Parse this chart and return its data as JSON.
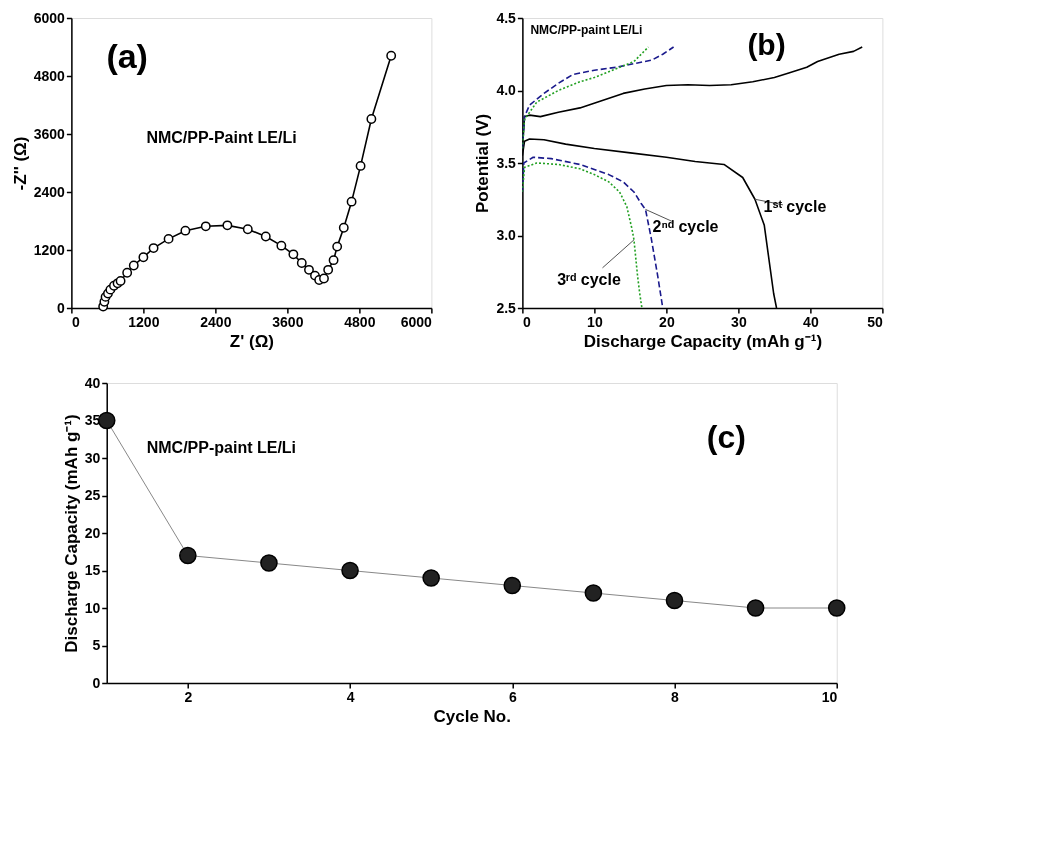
{
  "chart_data": [
    {
      "type": "line",
      "xlabel": "Z' (Ω)",
      "ylabel": "-Z'' (Ω)",
      "annotations": [
        "(a)",
        "NMC/PP-Paint LE/Li"
      ],
      "marker": "circle",
      "grid": false,
      "xlim": [
        0,
        6000
      ],
      "ylim": [
        0,
        6000
      ],
      "xticks": [
        0,
        1200,
        2400,
        3600,
        4800,
        6000
      ],
      "yticks": [
        0,
        1200,
        2400,
        3600,
        4800,
        6000
      ],
      "series": [
        {
          "color": "#000000",
          "line_style": "solid",
          "x": [
            530,
            550,
            570,
            610,
            650,
            710,
            770,
            820,
            930,
            1040,
            1200,
            1370,
            1620,
            1900,
            2240,
            2600,
            2940,
            3240,
            3500,
            3700,
            3840,
            3960,
            4060,
            4130,
            4210,
            4280,
            4370,
            4430,
            4540,
            4670,
            4820,
            5000,
            5330
          ],
          "values": [
            30,
            130,
            230,
            300,
            380,
            460,
            510,
            560,
            730,
            880,
            1050,
            1240,
            1430,
            1600,
            1690,
            1710,
            1630,
            1480,
            1290,
            1110,
            930,
            790,
            670,
            580,
            610,
            790,
            990,
            1270,
            1660,
            2200,
            2940,
            3910,
            5220
          ]
        }
      ]
    },
    {
      "type": "line",
      "xlabel": "Discharge Capacity (mAh g⁻¹)",
      "ylabel": "Potential (V)",
      "grid": false,
      "annotations": [
        "NMC/PP-paint LE/Li",
        "(b)",
        {
          "text": "1ˢᵗ cycle",
          "x": 32.3,
          "y": 3.25
        },
        {
          "text": "2ⁿᵈ cycle",
          "x": 17.1,
          "y": 3.18
        },
        {
          "text": "3ʳᵈ cycle",
          "x": 15.5,
          "y": 2.97
        }
      ],
      "xlim": [
        0,
        50
      ],
      "ylim": [
        2.5,
        4.5
      ],
      "xticks": [
        0,
        10,
        20,
        30,
        40,
        50
      ],
      "yticks": [
        2.5,
        {
          "value": 3,
          "label": "3.0"
        },
        3.5,
        {
          "value": 4,
          "label": "4.0"
        },
        4.5
      ],
      "series": [
        {
          "color": "#000000",
          "line_style": "solid",
          "x": [
            0,
            0.3,
            1,
            2.5,
            5,
            8,
            11,
            14,
            17,
            20,
            23,
            26,
            29,
            32,
            35,
            37,
            39.5,
            41,
            44,
            46,
            47.2
          ],
          "values": [
            3.6,
            3.82,
            3.83,
            3.82,
            3.85,
            3.88,
            3.93,
            3.98,
            4.01,
            4.035,
            4.04,
            4.035,
            4.04,
            4.06,
            4.09,
            4.12,
            4.16,
            4.2,
            4.25,
            4.27,
            4.3
          ]
        },
        {
          "color": "#000000",
          "line_style": "solid",
          "x": [
            0,
            0.3,
            1,
            3,
            6,
            10,
            15,
            20,
            24,
            28,
            30.6,
            32.3,
            33.6,
            34.4,
            34.9,
            35.3
          ],
          "values": [
            3.55,
            3.65,
            3.665,
            3.66,
            3.63,
            3.6,
            3.57,
            3.54,
            3.51,
            3.49,
            3.4,
            3.25,
            3.07,
            2.78,
            2.6,
            2.5
          ]
        },
        {
          "color": "#1a1a8c",
          "line_style": "dashed",
          "x": [
            0,
            0.3,
            1,
            3,
            5,
            7,
            10,
            13,
            16,
            18,
            19.5,
            21
          ],
          "values": [
            3.6,
            3.82,
            3.9,
            3.98,
            4.05,
            4.11,
            4.14,
            4.16,
            4.19,
            4.21,
            4.25,
            4.3
          ]
        },
        {
          "color": "#1a1a8c",
          "line_style": "dashed",
          "x": [
            0,
            0.2,
            1.5,
            4,
            8,
            12,
            14,
            15.5,
            16.5,
            17.1,
            17.9,
            18.8,
            19.5
          ],
          "values": [
            3.3,
            3.5,
            3.54,
            3.53,
            3.49,
            3.42,
            3.37,
            3.3,
            3.22,
            3.18,
            2.98,
            2.72,
            2.5
          ]
        },
        {
          "color": "#22a022",
          "line_style": "dotted",
          "x": [
            0,
            0.3,
            2,
            5,
            8,
            10,
            12,
            14,
            15.5,
            17.5
          ],
          "values": [
            3.6,
            3.8,
            3.92,
            4.0,
            4.06,
            4.09,
            4.13,
            4.17,
            4.2,
            4.3
          ]
        },
        {
          "color": "#22a022",
          "line_style": "dotted",
          "x": [
            0,
            0.3,
            2,
            5,
            6,
            8,
            10,
            12,
            13.5,
            14.5,
            15.2,
            15.5,
            16.0,
            16.3,
            16.6
          ],
          "values": [
            3.3,
            3.47,
            3.5,
            3.49,
            3.48,
            3.46,
            3.42,
            3.37,
            3.3,
            3.2,
            3.05,
            2.97,
            2.72,
            2.6,
            2.5
          ]
        }
      ]
    },
    {
      "type": "line",
      "xlabel": "Cycle No.",
      "ylabel": "Discharge Capacity (mAh g⁻¹)",
      "annotations": [
        "(c)",
        "NMC/PP-paint LE/Li"
      ],
      "marker": "circle",
      "grid": false,
      "xlim": [
        1,
        10
      ],
      "ylim": [
        0,
        40
      ],
      "xticks": [
        2,
        4,
        6,
        8,
        10
      ],
      "yticks": [
        0,
        5,
        10,
        15,
        20,
        25,
        30,
        35,
        40
      ],
      "x": [
        1,
        2,
        3,
        4,
        5,
        6,
        7,
        8,
        9,
        10
      ],
      "series": [
        {
          "color": "#000000",
          "line_style": "solid",
          "values": [
            35,
            17,
            16,
            15,
            14,
            13,
            12,
            11,
            10,
            10
          ]
        }
      ]
    }
  ]
}
